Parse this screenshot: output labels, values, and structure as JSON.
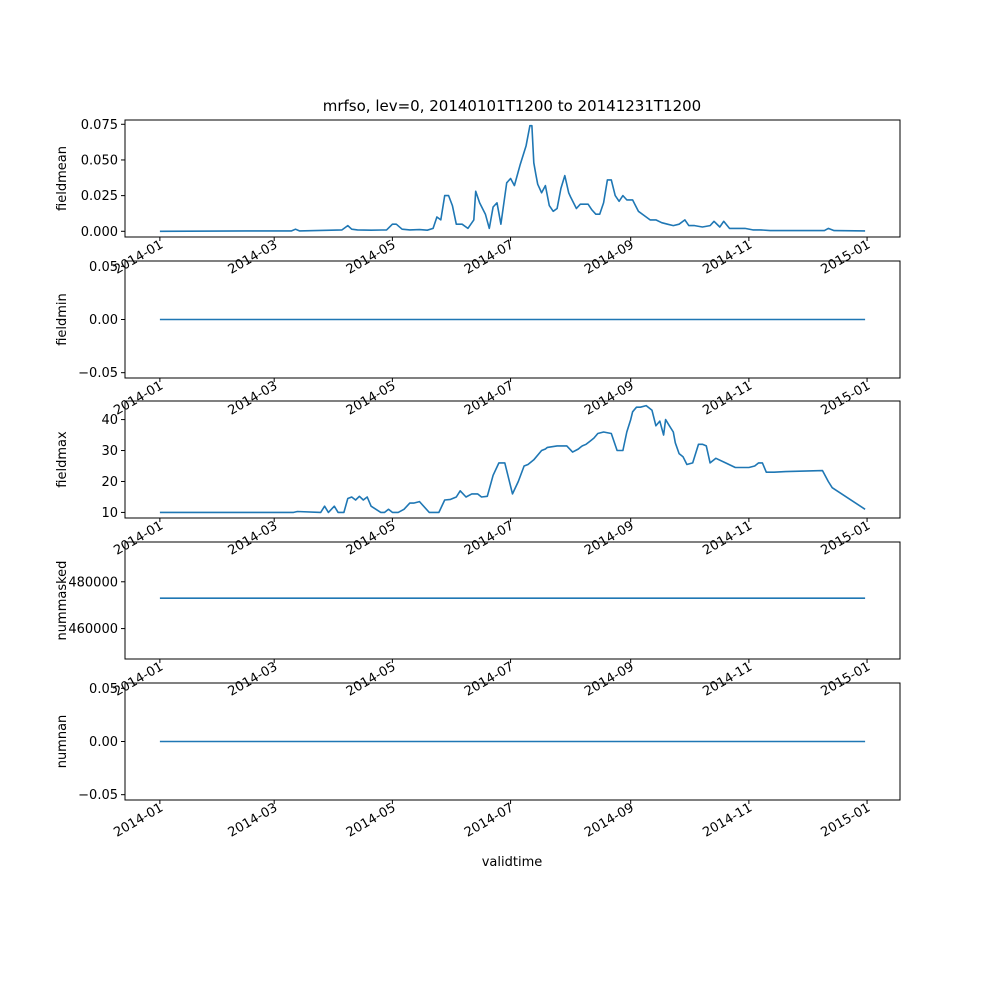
{
  "chart_data": {
    "type": "line",
    "title": "mrfso, lev=0, 20140101T1200 to 20141231T1200",
    "xlabel": "validtime",
    "xlim": [
      "2013-12-14",
      "2015-01-18"
    ],
    "xticks": [
      "2014-01",
      "2014-03",
      "2014-05",
      "2014-07",
      "2014-09",
      "2014-11",
      "2015-01"
    ],
    "line_color": "#1f77b4",
    "panels": [
      {
        "ylabel": "fieldmean",
        "ylim": [
          -0.004,
          0.078
        ],
        "yticks": [
          "0.000",
          "0.025",
          "0.050",
          "0.075"
        ],
        "ytick_values": [
          0,
          0.025,
          0.05,
          0.075
        ],
        "x": [
          "2014-01-01",
          "2014-02-15",
          "2014-03-10",
          "2014-03-12",
          "2014-03-14",
          "2014-04-05",
          "2014-04-08",
          "2014-04-10",
          "2014-04-13",
          "2014-04-20",
          "2014-04-28",
          "2014-05-01",
          "2014-05-03",
          "2014-05-06",
          "2014-05-10",
          "2014-05-15",
          "2014-05-19",
          "2014-05-22",
          "2014-05-24",
          "2014-05-26",
          "2014-05-28",
          "2014-05-30",
          "2014-06-01",
          "2014-06-03",
          "2014-06-06",
          "2014-06-09",
          "2014-06-12",
          "2014-06-13",
          "2014-06-15",
          "2014-06-18",
          "2014-06-20",
          "2014-06-22",
          "2014-06-24",
          "2014-06-26",
          "2014-06-29",
          "2014-07-01",
          "2014-07-03",
          "2014-07-06",
          "2014-07-09",
          "2014-07-11",
          "2014-07-12",
          "2014-07-13",
          "2014-07-14",
          "2014-07-15",
          "2014-07-17",
          "2014-07-19",
          "2014-07-21",
          "2014-07-23",
          "2014-07-25",
          "2014-07-27",
          "2014-07-29",
          "2014-07-31",
          "2014-08-01",
          "2014-08-04",
          "2014-08-06",
          "2014-08-08",
          "2014-08-10",
          "2014-08-12",
          "2014-08-14",
          "2014-08-16",
          "2014-08-18",
          "2014-08-20",
          "2014-08-22",
          "2014-08-24",
          "2014-08-26",
          "2014-08-28",
          "2014-08-30",
          "2014-09-02",
          "2014-09-05",
          "2014-09-08",
          "2014-09-11",
          "2014-09-14",
          "2014-09-17",
          "2014-09-20",
          "2014-09-23",
          "2014-09-26",
          "2014-09-29",
          "2014-10-01",
          "2014-10-04",
          "2014-10-08",
          "2014-10-12",
          "2014-10-14",
          "2014-10-17",
          "2014-10-19",
          "2014-10-22",
          "2014-10-26",
          "2014-10-30",
          "2014-11-03",
          "2014-11-07",
          "2014-11-12",
          "2014-12-10",
          "2014-12-12",
          "2014-12-15",
          "2014-12-31"
        ],
        "y": [
          0.0,
          0.0003,
          0.0003,
          0.0015,
          0.0003,
          0.001,
          0.004,
          0.0015,
          0.001,
          0.0008,
          0.001,
          0.005,
          0.005,
          0.0015,
          0.001,
          0.0012,
          0.0008,
          0.002,
          0.01,
          0.008,
          0.025,
          0.025,
          0.018,
          0.005,
          0.005,
          0.002,
          0.008,
          0.028,
          0.02,
          0.012,
          0.002,
          0.017,
          0.02,
          0.005,
          0.034,
          0.037,
          0.032,
          0.047,
          0.06,
          0.074,
          0.074,
          0.048,
          0.04,
          0.033,
          0.027,
          0.032,
          0.018,
          0.014,
          0.016,
          0.03,
          0.039,
          0.027,
          0.024,
          0.016,
          0.019,
          0.019,
          0.019,
          0.015,
          0.012,
          0.012,
          0.02,
          0.036,
          0.036,
          0.025,
          0.021,
          0.025,
          0.022,
          0.022,
          0.014,
          0.011,
          0.008,
          0.008,
          0.006,
          0.005,
          0.004,
          0.005,
          0.008,
          0.004,
          0.004,
          0.003,
          0.004,
          0.007,
          0.003,
          0.007,
          0.002,
          0.002,
          0.002,
          0.001,
          0.001,
          0.0005,
          0.0005,
          0.002,
          0.0005,
          0.0003
        ]
      },
      {
        "ylabel": "fieldmin",
        "ylim": [
          -0.055,
          0.055
        ],
        "yticks": [
          "−0.05",
          "0.00",
          "0.05"
        ],
        "ytick_values": [
          -0.05,
          0,
          0.05
        ],
        "x": [
          "2014-01-01",
          "2014-12-31"
        ],
        "y": [
          0,
          0
        ]
      },
      {
        "ylabel": "fieldmax",
        "ylim": [
          8.2,
          46
        ],
        "yticks": [
          "10",
          "20",
          "30",
          "40"
        ],
        "ytick_values": [
          10,
          20,
          30,
          40
        ],
        "x": [
          "2014-01-01",
          "2014-03-11",
          "2014-03-13",
          "2014-03-25",
          "2014-03-27",
          "2014-03-29",
          "2014-04-01",
          "2014-04-03",
          "2014-04-06",
          "2014-04-08",
          "2014-04-10",
          "2014-04-12",
          "2014-04-14",
          "2014-04-16",
          "2014-04-18",
          "2014-04-20",
          "2014-04-25",
          "2014-04-27",
          "2014-04-29",
          "2014-05-01",
          "2014-05-04",
          "2014-05-07",
          "2014-05-10",
          "2014-05-12",
          "2014-05-15",
          "2014-05-20",
          "2014-05-22",
          "2014-05-25",
          "2014-05-28",
          "2014-05-31",
          "2014-06-03",
          "2014-06-05",
          "2014-06-08",
          "2014-06-11",
          "2014-06-14",
          "2014-06-16",
          "2014-06-19",
          "2014-06-22",
          "2014-06-25",
          "2014-06-28",
          "2014-07-02",
          "2014-07-05",
          "2014-07-08",
          "2014-07-10",
          "2014-07-13",
          "2014-07-17",
          "2014-07-19",
          "2014-07-20",
          "2014-07-25",
          "2014-07-30",
          "2014-08-02",
          "2014-08-05",
          "2014-08-06",
          "2014-08-07",
          "2014-08-09",
          "2014-08-11",
          "2014-08-13",
          "2014-08-15",
          "2014-08-18",
          "2014-08-22",
          "2014-08-25",
          "2014-08-28",
          "2014-08-30",
          "2014-09-01",
          "2014-09-02",
          "2014-09-04",
          "2014-09-06",
          "2014-09-09",
          "2014-09-12",
          "2014-09-14",
          "2014-09-16",
          "2014-09-18",
          "2014-09-19",
          "2014-09-21",
          "2014-09-23",
          "2014-09-24",
          "2014-09-26",
          "2014-09-28",
          "2014-09-30",
          "2014-10-03",
          "2014-10-06",
          "2014-10-08",
          "2014-10-10",
          "2014-10-12",
          "2014-10-15",
          "2014-10-20",
          "2014-10-25",
          "2014-11-01",
          "2014-11-04",
          "2014-11-06",
          "2014-11-08",
          "2014-11-10",
          "2014-11-12",
          "2014-11-14",
          "2014-11-20",
          "2014-12-09",
          "2014-12-12",
          "2014-12-14",
          "2014-12-31"
        ],
        "y": [
          10,
          10,
          10.3,
          10,
          12,
          10,
          12,
          10,
          10,
          14.5,
          15,
          14,
          15.2,
          14,
          15,
          12,
          10,
          10,
          11,
          10,
          10,
          11,
          13,
          13,
          13.5,
          10,
          10,
          10,
          14,
          14.2,
          15,
          17,
          15,
          16,
          16,
          15,
          15.2,
          22,
          26,
          26,
          16,
          20,
          25,
          25.5,
          27,
          30,
          30.5,
          31,
          31.5,
          31.5,
          29.5,
          30.5,
          31,
          31.5,
          32,
          33,
          34,
          35.5,
          36,
          35.5,
          30,
          30,
          36,
          40,
          42.5,
          44,
          44,
          44.5,
          43,
          38,
          39.5,
          35,
          40,
          38,
          36,
          32.5,
          29,
          28,
          25.5,
          26,
          32,
          32,
          31.5,
          26,
          27.5,
          26,
          24.5,
          24.5,
          25,
          26,
          26,
          23,
          23,
          23,
          23.2,
          23.5,
          20,
          18,
          11
        ]
      },
      {
        "ylabel": "nummasked",
        "ylim": [
          447000,
          497000
        ],
        "yticks": [
          "460000",
          "480000"
        ],
        "ytick_values": [
          460000,
          480000
        ],
        "x": [
          "2014-01-01",
          "2014-12-31"
        ],
        "y": [
          473000,
          473000
        ]
      },
      {
        "ylabel": "numnan",
        "ylim": [
          -0.055,
          0.055
        ],
        "yticks": [
          "−0.05",
          "0.00",
          "0.05"
        ],
        "ytick_values": [
          -0.05,
          0,
          0.05
        ],
        "x": [
          "2014-01-01",
          "2014-12-31"
        ],
        "y": [
          0,
          0
        ]
      }
    ]
  }
}
